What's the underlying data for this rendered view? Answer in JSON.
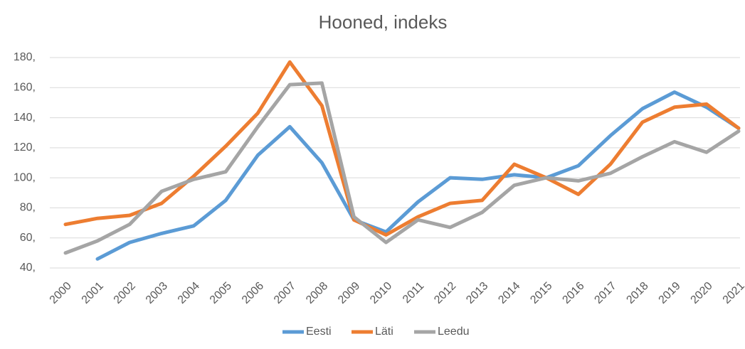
{
  "chart_data": {
    "type": "line",
    "title": "Hooned, indeks",
    "categories": [
      "2000",
      "2001",
      "2002",
      "2003",
      "2004",
      "2005",
      "2006",
      "2007",
      "2008",
      "2009",
      "2010",
      "2011",
      "2012",
      "2013",
      "2014",
      "2015",
      "2016",
      "2017",
      "2018",
      "2019",
      "2020",
      "2021"
    ],
    "series": [
      {
        "name": "Eesti",
        "color": "#5b9bd5",
        "values": [
          null,
          46,
          57,
          63,
          68,
          85,
          115,
          134,
          110,
          72,
          64,
          84,
          100,
          99,
          102,
          100,
          108,
          128,
          146,
          157,
          147,
          133
        ]
      },
      {
        "name": "Läti",
        "color": "#ed7d31",
        "values": [
          69,
          73,
          75,
          83,
          101,
          121,
          143,
          177,
          148,
          72,
          62,
          74,
          83,
          85,
          109,
          100,
          89,
          109,
          137,
          147,
          149,
          133
        ]
      },
      {
        "name": "Leedu",
        "color": "#a5a5a5",
        "values": [
          50,
          58,
          69,
          91,
          99,
          104,
          134,
          162,
          163,
          74,
          57,
          72,
          67,
          77,
          95,
          100,
          98,
          103,
          114,
          124,
          117,
          131
        ]
      }
    ],
    "ylim": [
      40,
      180
    ],
    "yticks": [
      {
        "value": 40,
        "label": "40,"
      },
      {
        "value": 60,
        "label": "60,"
      },
      {
        "value": 80,
        "label": "80,"
      },
      {
        "value": 100,
        "label": "100,"
      },
      {
        "value": 120,
        "label": "120,"
      },
      {
        "value": 140,
        "label": "140,"
      },
      {
        "value": 160,
        "label": "160,"
      },
      {
        "value": 180,
        "label": "180,"
      }
    ],
    "grid": true,
    "legend": "bottom"
  }
}
